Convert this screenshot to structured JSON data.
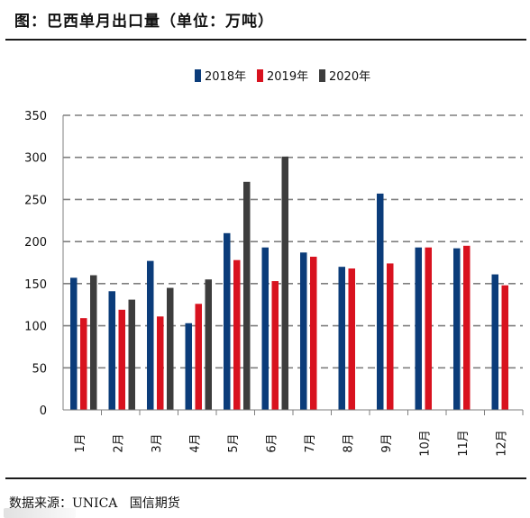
{
  "header": {
    "title": "图：巴西单月出口量（单位：万吨）"
  },
  "source": {
    "label": "数据来源：",
    "name": "UNICA",
    "org": "国信期货"
  },
  "chart_data": {
    "type": "bar",
    "title": "",
    "xlabel": "",
    "ylabel": "",
    "ylim": [
      0,
      350
    ],
    "yticks": [
      0,
      50,
      100,
      150,
      200,
      250,
      300,
      350
    ],
    "grid": true,
    "legend_position": "top-center",
    "categories": [
      "1月",
      "2月",
      "3月",
      "4月",
      "5月",
      "6月",
      "7月",
      "8月",
      "9月",
      "10月",
      "11月",
      "12月"
    ],
    "series": [
      {
        "name": "2018年",
        "color": "#0b3c7a",
        "values": [
          157,
          141,
          177,
          103,
          210,
          193,
          187,
          170,
          257,
          193,
          192,
          161
        ]
      },
      {
        "name": "2019年",
        "color": "#d8121f",
        "values": [
          109,
          119,
          111,
          126,
          178,
          153,
          182,
          168,
          174,
          193,
          195,
          148
        ]
      },
      {
        "name": "2020年",
        "color": "#3d3d3d",
        "values": [
          160,
          131,
          145,
          155,
          271,
          301,
          null,
          null,
          null,
          null,
          null,
          null
        ]
      }
    ]
  }
}
